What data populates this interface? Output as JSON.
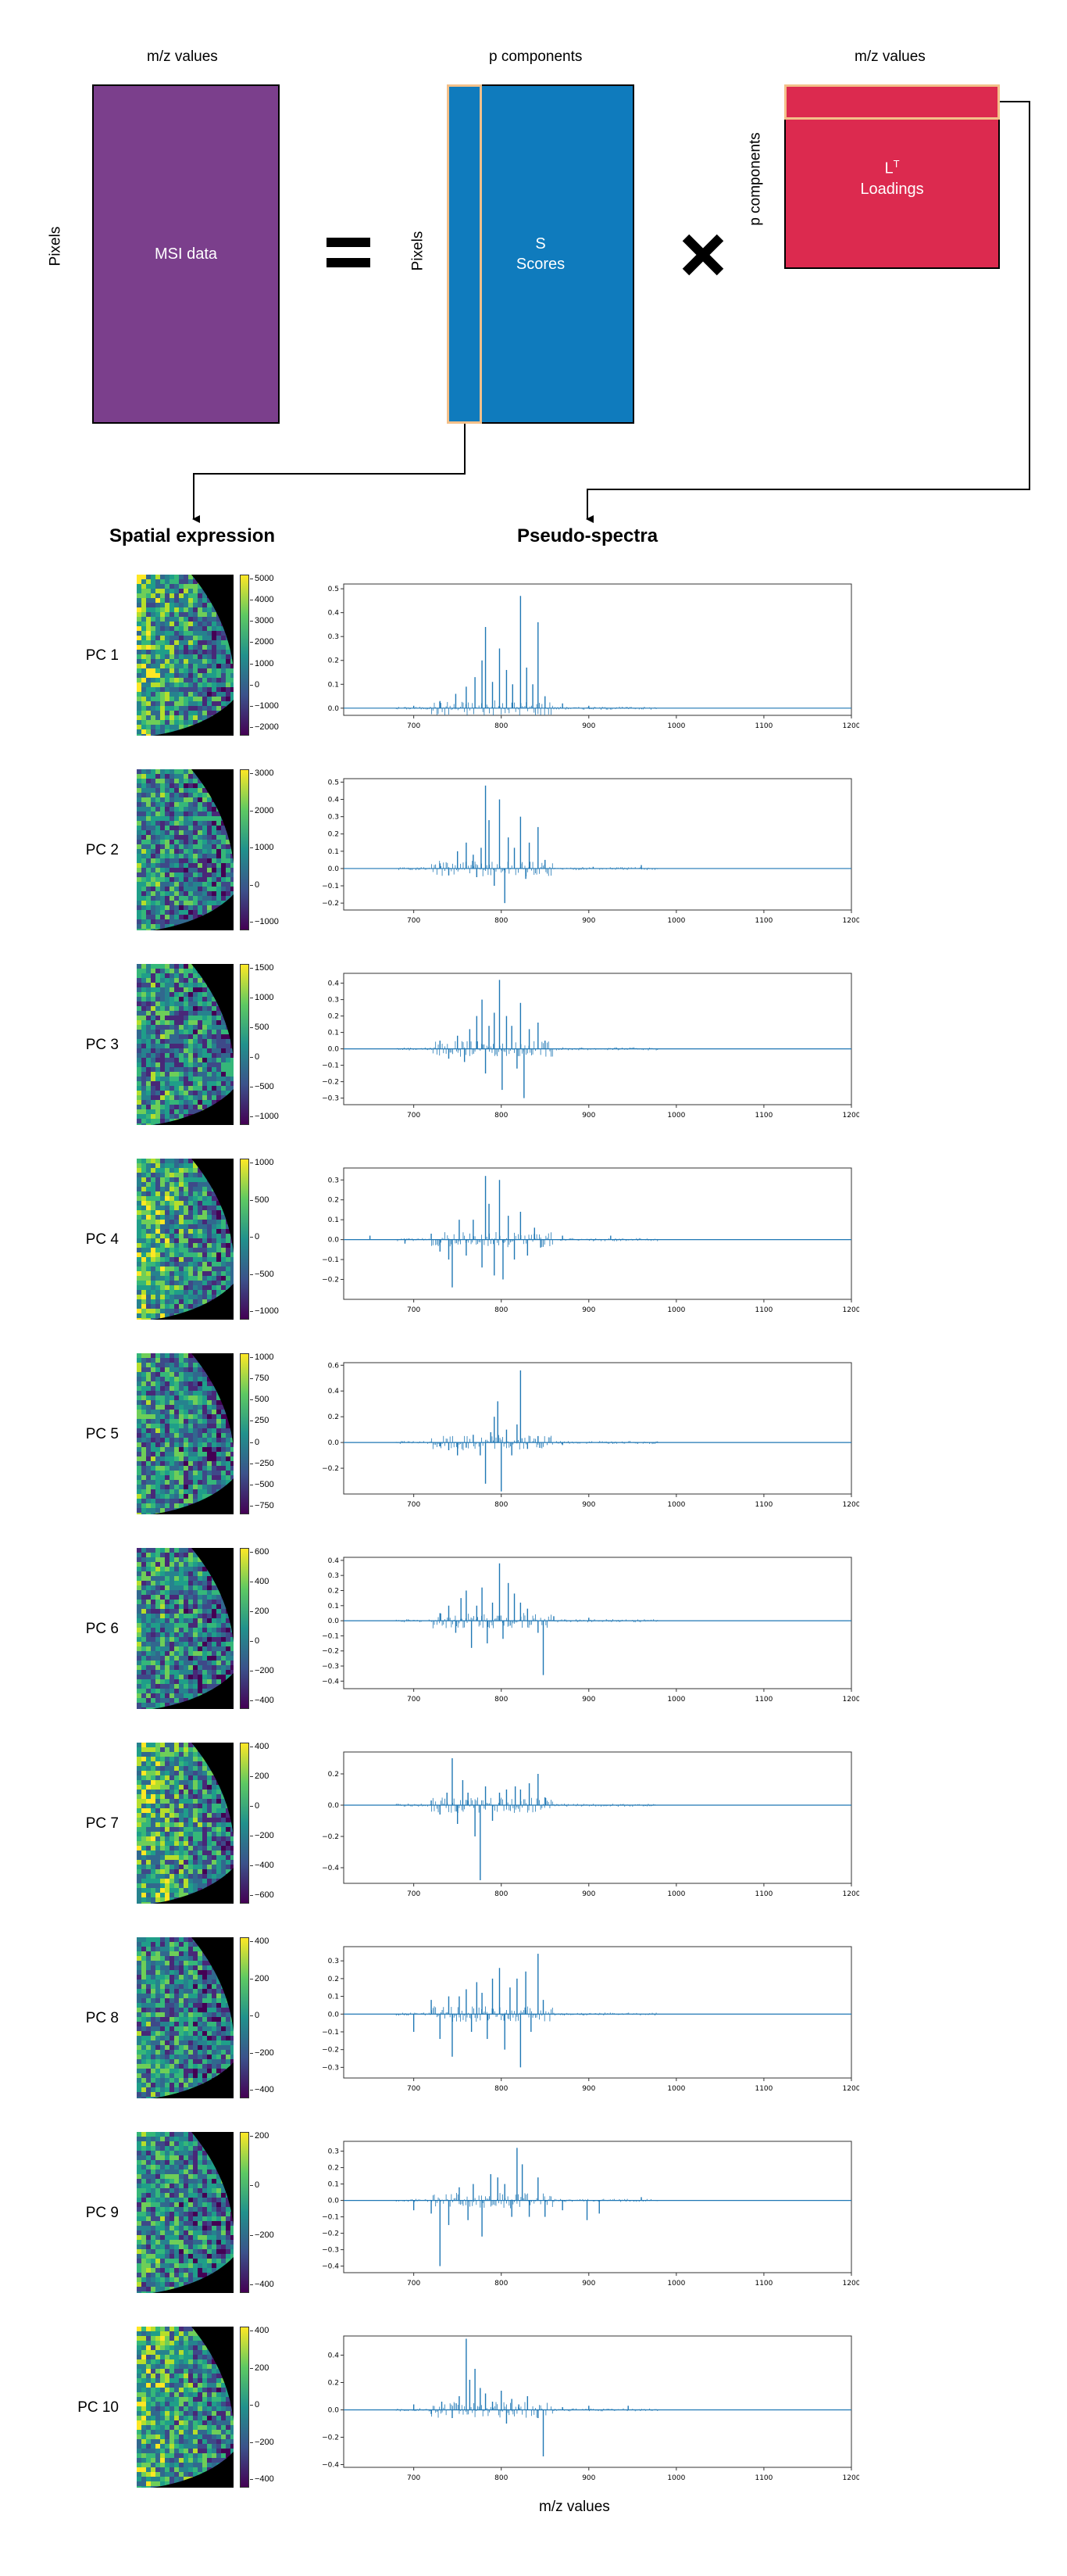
{
  "diagram": {
    "equation": {
      "mz_label_left": "m/z values",
      "pixels_label_left": "Pixels",
      "msi_box_label": "MSI data",
      "equals_symbol": "=",
      "p_components_label": "p components",
      "pixels_label_mid": "Pixels",
      "scores_symbol": "S",
      "scores_label": "Scores",
      "times_symbol": "✖",
      "mz_label_right": "m/z values",
      "p_components_vertical": "p components",
      "loadings_symbol": "L",
      "loadings_superscript": "T",
      "loadings_label": "Loadings",
      "colors": {
        "msi": "#7b3f8c",
        "scores": "#0f7bbd",
        "loadings": "#dc2a4f",
        "highlight": "#f3c08a"
      }
    },
    "headers": {
      "spatial": "Spatial expression",
      "spectra": "Pseudo-spectra"
    },
    "x_axis_label": "m/z values"
  },
  "chart_data": {
    "type": "line",
    "xlim": [
      620,
      1200
    ],
    "x_ticks": [
      "700",
      "800",
      "900",
      "1000",
      "1100",
      "1200"
    ],
    "series_color": "#1f77b4",
    "components": [
      {
        "name": "PC 1",
        "y_ticks": [
          "0.5",
          "0.4",
          "0.3",
          "0.2",
          "0.1",
          "0.0"
        ],
        "ylim": [
          -0.03,
          0.52
        ],
        "colorbar_ticks": [
          "5000",
          "4000",
          "3000",
          "2000",
          "1000",
          "0",
          "−1000",
          "−2000"
        ],
        "peaks": [
          [
            700,
            0.01
          ],
          [
            730,
            0.03
          ],
          [
            748,
            0.06
          ],
          [
            760,
            0.09
          ],
          [
            770,
            0.13
          ],
          [
            778,
            0.2
          ],
          [
            782,
            0.34
          ],
          [
            790,
            0.11
          ],
          [
            798,
            0.25
          ],
          [
            806,
            0.16
          ],
          [
            813,
            0.1
          ],
          [
            822,
            0.47
          ],
          [
            829,
            0.17
          ],
          [
            836,
            0.1
          ],
          [
            842,
            0.36
          ],
          [
            850,
            0.05
          ],
          [
            870,
            0.02
          ],
          [
            900,
            0.01
          ]
        ]
      },
      {
        "name": "PC 2",
        "y_ticks": [
          "0.5",
          "0.4",
          "0.3",
          "0.2",
          "0.1",
          "0.0",
          "−0.1",
          "−0.2"
        ],
        "ylim": [
          -0.24,
          0.52
        ],
        "colorbar_ticks": [
          "3000",
          "2000",
          "1000",
          "0",
          "−1000"
        ],
        "peaks": [
          [
            730,
            0.03
          ],
          [
            740,
            -0.04
          ],
          [
            750,
            0.1
          ],
          [
            760,
            0.15
          ],
          [
            768,
            0.08
          ],
          [
            772,
            -0.05
          ],
          [
            777,
            0.12
          ],
          [
            782,
            0.48
          ],
          [
            786,
            0.28
          ],
          [
            792,
            -0.1
          ],
          [
            798,
            0.4
          ],
          [
            804,
            -0.2
          ],
          [
            808,
            0.18
          ],
          [
            815,
            0.12
          ],
          [
            822,
            0.3
          ],
          [
            828,
            -0.06
          ],
          [
            832,
            0.15
          ],
          [
            842,
            0.24
          ],
          [
            850,
            0.05
          ],
          [
            905,
            0.01
          ],
          [
            960,
            0.02
          ]
        ]
      },
      {
        "name": "PC 3",
        "y_ticks": [
          "0.4",
          "0.3",
          "0.2",
          "0.1",
          "0.0",
          "−0.1",
          "−0.2",
          "−0.3"
        ],
        "ylim": [
          -0.34,
          0.46
        ],
        "colorbar_ticks": [
          "1500",
          "1000",
          "500",
          "0",
          "−500",
          "−1000"
        ],
        "peaks": [
          [
            730,
            0.05
          ],
          [
            740,
            -0.06
          ],
          [
            750,
            0.08
          ],
          [
            758,
            -0.08
          ],
          [
            764,
            0.12
          ],
          [
            772,
            0.2
          ],
          [
            778,
            0.3
          ],
          [
            782,
            -0.15
          ],
          [
            786,
            0.14
          ],
          [
            792,
            0.22
          ],
          [
            798,
            0.42
          ],
          [
            801,
            -0.25
          ],
          [
            806,
            0.2
          ],
          [
            812,
            0.14
          ],
          [
            818,
            -0.12
          ],
          [
            822,
            0.28
          ],
          [
            826,
            -0.3
          ],
          [
            832,
            0.12
          ],
          [
            842,
            0.16
          ],
          [
            850,
            0.05
          ]
        ]
      },
      {
        "name": "PC 4",
        "y_ticks": [
          "0.3",
          "0.2",
          "0.1",
          "0.0",
          "−0.1",
          "−0.2"
        ],
        "ylim": [
          -0.3,
          0.36
        ],
        "colorbar_ticks": [
          "1000",
          "500",
          "0",
          "−500",
          "−1000"
        ],
        "peaks": [
          [
            650,
            0.02
          ],
          [
            690,
            -0.02
          ],
          [
            720,
            0.03
          ],
          [
            730,
            -0.06
          ],
          [
            740,
            -0.1
          ],
          [
            744,
            -0.24
          ],
          [
            752,
            0.1
          ],
          [
            760,
            -0.08
          ],
          [
            768,
            0.1
          ],
          [
            778,
            -0.14
          ],
          [
            782,
            0.32
          ],
          [
            786,
            0.18
          ],
          [
            792,
            -0.18
          ],
          [
            798,
            0.3
          ],
          [
            802,
            -0.2
          ],
          [
            808,
            0.12
          ],
          [
            815,
            -0.1
          ],
          [
            822,
            0.14
          ],
          [
            830,
            -0.08
          ],
          [
            838,
            0.06
          ],
          [
            845,
            -0.04
          ],
          [
            870,
            0.02
          ],
          [
            925,
            0.02
          ]
        ]
      },
      {
        "name": "PC 5",
        "y_ticks": [
          "0.6",
          "0.4",
          "0.2",
          "0.0",
          "−0.2"
        ],
        "ylim": [
          -0.4,
          0.62
        ],
        "colorbar_ticks": [
          "1000",
          "750",
          "500",
          "250",
          "0",
          "−250",
          "−500",
          "−750"
        ],
        "peaks": [
          [
            730,
            -0.03
          ],
          [
            740,
            -0.06
          ],
          [
            750,
            -0.1
          ],
          [
            760,
            -0.04
          ],
          [
            768,
            0.06
          ],
          [
            776,
            -0.1
          ],
          [
            782,
            -0.32
          ],
          [
            788,
            0.08
          ],
          [
            792,
            0.2
          ],
          [
            796,
            0.32
          ],
          [
            800,
            -0.38
          ],
          [
            806,
            0.1
          ],
          [
            812,
            -0.1
          ],
          [
            818,
            0.14
          ],
          [
            822,
            0.56
          ],
          [
            830,
            -0.05
          ],
          [
            842,
            0.05
          ],
          [
            870,
            -0.02
          ]
        ]
      },
      {
        "name": "PC 6",
        "y_ticks": [
          "0.4",
          "0.3",
          "0.2",
          "0.1",
          "0.0",
          "−0.1",
          "−0.2",
          "−0.3",
          "−0.4"
        ],
        "ylim": [
          -0.45,
          0.42
        ],
        "colorbar_ticks": [
          "600",
          "400",
          "200",
          "0",
          "−200",
          "−400"
        ],
        "peaks": [
          [
            730,
            0.05
          ],
          [
            740,
            0.1
          ],
          [
            748,
            -0.08
          ],
          [
            754,
            0.15
          ],
          [
            760,
            0.2
          ],
          [
            766,
            -0.18
          ],
          [
            772,
            0.1
          ],
          [
            778,
            0.22
          ],
          [
            784,
            -0.15
          ],
          [
            790,
            0.12
          ],
          [
            798,
            0.38
          ],
          [
            802,
            -0.12
          ],
          [
            808,
            0.25
          ],
          [
            815,
            0.18
          ],
          [
            822,
            0.12
          ],
          [
            830,
            0.08
          ],
          [
            842,
            -0.08
          ],
          [
            848,
            -0.36
          ],
          [
            860,
            0.03
          ],
          [
            900,
            0.02
          ]
        ]
      },
      {
        "name": "PC 7",
        "y_ticks": [
          "0.2",
          "0.0",
          "−0.2",
          "−0.4"
        ],
        "ylim": [
          -0.5,
          0.34
        ],
        "colorbar_ticks": [
          "400",
          "200",
          "0",
          "−200",
          "−400",
          "−600"
        ],
        "peaks": [
          [
            720,
            0.03
          ],
          [
            730,
            -0.06
          ],
          [
            738,
            0.08
          ],
          [
            744,
            0.3
          ],
          [
            750,
            -0.12
          ],
          [
            756,
            0.16
          ],
          [
            762,
            0.08
          ],
          [
            770,
            -0.2
          ],
          [
            776,
            -0.48
          ],
          [
            782,
            0.12
          ],
          [
            790,
            -0.1
          ],
          [
            798,
            0.08
          ],
          [
            806,
            0.1
          ],
          [
            816,
            0.12
          ],
          [
            822,
            0.1
          ],
          [
            832,
            0.14
          ],
          [
            842,
            0.2
          ],
          [
            850,
            0.05
          ]
        ]
      },
      {
        "name": "PC 8",
        "y_ticks": [
          "0.3",
          "0.2",
          "0.1",
          "0.0",
          "−0.1",
          "−0.2",
          "−0.3"
        ],
        "ylim": [
          -0.36,
          0.38
        ],
        "colorbar_ticks": [
          "400",
          "200",
          "0",
          "−200",
          "−400"
        ],
        "peaks": [
          [
            700,
            -0.1
          ],
          [
            720,
            0.08
          ],
          [
            730,
            -0.14
          ],
          [
            740,
            0.1
          ],
          [
            744,
            -0.24
          ],
          [
            752,
            0.1
          ],
          [
            760,
            0.14
          ],
          [
            766,
            -0.1
          ],
          [
            772,
            0.18
          ],
          [
            778,
            0.12
          ],
          [
            784,
            -0.14
          ],
          [
            790,
            0.2
          ],
          [
            798,
            0.26
          ],
          [
            804,
            -0.2
          ],
          [
            810,
            0.15
          ],
          [
            818,
            0.2
          ],
          [
            822,
            -0.3
          ],
          [
            828,
            0.24
          ],
          [
            834,
            -0.1
          ],
          [
            842,
            0.34
          ],
          [
            848,
            0.08
          ]
        ]
      },
      {
        "name": "PC 9",
        "y_ticks": [
          "0.3",
          "0.2",
          "0.1",
          "0.0",
          "−0.1",
          "−0.2",
          "−0.3",
          "−0.4"
        ],
        "ylim": [
          -0.44,
          0.36
        ],
        "colorbar_ticks": [
          "200",
          "0",
          "−200",
          "−400"
        ],
        "peaks": [
          [
            700,
            -0.06
          ],
          [
            720,
            -0.08
          ],
          [
            730,
            -0.4
          ],
          [
            740,
            -0.15
          ],
          [
            752,
            0.08
          ],
          [
            762,
            -0.12
          ],
          [
            768,
            0.1
          ],
          [
            778,
            -0.22
          ],
          [
            788,
            0.16
          ],
          [
            796,
            0.14
          ],
          [
            804,
            0.1
          ],
          [
            812,
            -0.1
          ],
          [
            818,
            0.32
          ],
          [
            824,
            0.22
          ],
          [
            832,
            -0.1
          ],
          [
            842,
            0.14
          ],
          [
            850,
            -0.1
          ],
          [
            870,
            -0.06
          ],
          [
            898,
            -0.12
          ],
          [
            912,
            -0.08
          ],
          [
            960,
            0.02
          ]
        ]
      },
      {
        "name": "PC 10",
        "y_ticks": [
          "0.4",
          "0.2",
          "0.0",
          "−0.2",
          "−0.4"
        ],
        "ylim": [
          -0.42,
          0.54
        ],
        "colorbar_ticks": [
          "400",
          "200",
          "0",
          "−200",
          "−400"
        ],
        "peaks": [
          [
            700,
            0.04
          ],
          [
            720,
            -0.03
          ],
          [
            732,
            0.06
          ],
          [
            744,
            -0.06
          ],
          [
            752,
            0.1
          ],
          [
            760,
            0.52
          ],
          [
            764,
            0.22
          ],
          [
            770,
            0.3
          ],
          [
            776,
            0.16
          ],
          [
            782,
            0.12
          ],
          [
            790,
            0.06
          ],
          [
            800,
            0.14
          ],
          [
            806,
            -0.1
          ],
          [
            812,
            0.08
          ],
          [
            820,
            0.04
          ],
          [
            830,
            0.1
          ],
          [
            842,
            -0.06
          ],
          [
            848,
            -0.34
          ],
          [
            870,
            0.02
          ],
          [
            900,
            0.03
          ],
          [
            945,
            0.03
          ]
        ]
      }
    ]
  }
}
